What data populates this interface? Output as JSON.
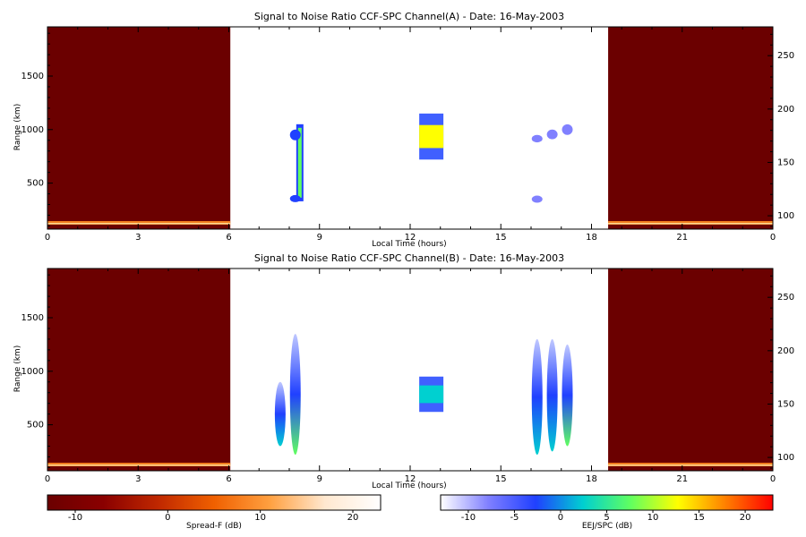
{
  "chart_data": [
    {
      "type": "heatmap",
      "title": "Signal to Noise Ratio CCF-SPC Channel(A) - Date: 16-May-2003",
      "xlabel": "Local Time (hours)",
      "ylabel": "Range (km)",
      "xlim": [
        0,
        24
      ],
      "ylim": [
        70,
        1960
      ],
      "xticks": [
        "0",
        "3",
        "6",
        "9",
        "12",
        "15",
        "18",
        "21",
        "0"
      ],
      "yticks": [
        500,
        1000,
        1500
      ],
      "right_yticks": [
        100,
        150,
        200,
        250
      ],
      "right_ylim": [
        87.5,
        277
      ],
      "night_blocks": [
        [
          0,
          6.05
        ],
        [
          18.55,
          24
        ]
      ],
      "echoes": [
        {
          "t": 8.35,
          "r": [
            330,
            1050
          ],
          "kind": "column",
          "snr": 8
        },
        {
          "t": 8.2,
          "r": [
            900,
            1000
          ],
          "kind": "blob",
          "snr": -4
        },
        {
          "t": 8.2,
          "r": [
            330,
            380
          ],
          "kind": "blob",
          "snr": -4
        },
        {
          "t": 12.7,
          "r": [
            720,
            1150
          ],
          "kind": "block",
          "snr": 14
        },
        {
          "t": 16.2,
          "r": [
            880,
            950
          ],
          "kind": "blob",
          "snr": -6
        },
        {
          "t": 16.7,
          "r": [
            910,
            1000
          ],
          "kind": "blob",
          "snr": -6
        },
        {
          "t": 17.2,
          "r": [
            950,
            1050
          ],
          "kind": "blob",
          "snr": -6
        },
        {
          "t": 16.2,
          "r": [
            320,
            380
          ],
          "kind": "blob",
          "snr": -6
        }
      ]
    },
    {
      "type": "heatmap",
      "title": "Signal to Noise Ratio CCF-SPC Channel(B) - Date: 16-May-2003",
      "xlabel": "Local Time (hours)",
      "ylabel": "Range (km)",
      "xlim": [
        0,
        24
      ],
      "ylim": [
        70,
        1960
      ],
      "xticks": [
        "0",
        "3",
        "6",
        "9",
        "12",
        "15",
        "18",
        "21",
        "0"
      ],
      "yticks": [
        500,
        1000,
        1500
      ],
      "right_yticks": [
        100,
        150,
        200,
        250
      ],
      "right_ylim": [
        87.5,
        277
      ],
      "night_blocks": [
        [
          0,
          6.05
        ],
        [
          18.55,
          24
        ]
      ],
      "echoes": [
        {
          "t": 7.7,
          "r": [
            300,
            900
          ],
          "kind": "plume",
          "snr": 0
        },
        {
          "t": 8.2,
          "r": [
            220,
            1350
          ],
          "kind": "plume",
          "snr": 6
        },
        {
          "t": 12.7,
          "r": [
            620,
            950
          ],
          "kind": "block",
          "snr": 0
        },
        {
          "t": 16.2,
          "r": [
            220,
            1300
          ],
          "kind": "plume",
          "snr": 4
        },
        {
          "t": 16.7,
          "r": [
            250,
            1300
          ],
          "kind": "plume",
          "snr": 3
        },
        {
          "t": 17.2,
          "r": [
            300,
            1250
          ],
          "kind": "plume",
          "snr": 5
        }
      ]
    }
  ],
  "colorbars": [
    {
      "label": "Spread-F (dB)",
      "ticks": [
        "-10",
        "0",
        "10",
        "20"
      ],
      "range": [
        -13,
        23
      ],
      "colors": [
        "#6b0000",
        "#8a0000",
        "#c02800",
        "#f06000",
        "#ffa040",
        "#ffe8d0",
        "#ffffff"
      ]
    },
    {
      "label": "EEJ/SPC (dB)",
      "ticks": [
        "-10",
        "-5",
        "0",
        "5",
        "10",
        "15",
        "20"
      ],
      "range": [
        -13,
        23
      ],
      "colors": [
        "#ffffff",
        "#8080ff",
        "#2040ff",
        "#00d0d0",
        "#60ff60",
        "#ffff00",
        "#ff8000",
        "#ff0000"
      ]
    }
  ],
  "colors": {
    "night": "#6b0000",
    "band": "#ff8a20"
  }
}
